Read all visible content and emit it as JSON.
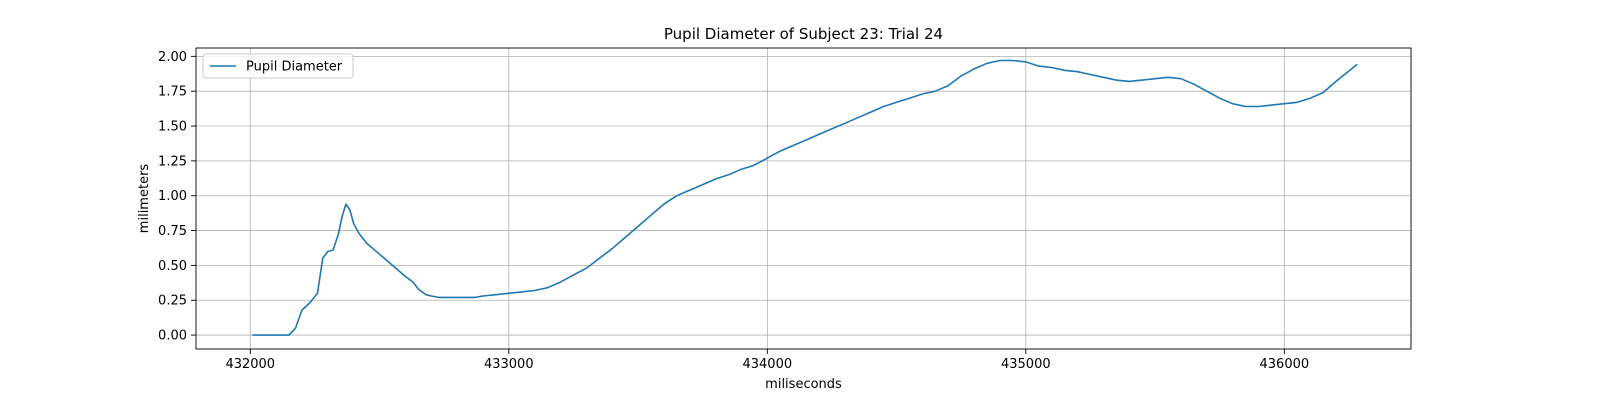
{
  "chart_data": {
    "type": "line",
    "title": "Pupil Diameter of Subject 23: Trial 24",
    "xlabel": "miliseconds",
    "ylabel": "milimeters",
    "xlim": [
      431790,
      436490
    ],
    "ylim": [
      -0.1,
      2.06
    ],
    "xticks": [
      432000,
      433000,
      434000,
      435000,
      436000
    ],
    "yticks": [
      0.0,
      0.25,
      0.5,
      0.75,
      1.0,
      1.25,
      1.5,
      1.75,
      2.0
    ],
    "ytick_labels": [
      "0.00",
      "0.25",
      "0.50",
      "0.75",
      "1.00",
      "1.25",
      "1.50",
      "1.75",
      "2.00"
    ],
    "grid": true,
    "legend_position": "top-left",
    "colors": {
      "series": "#1f77b4"
    },
    "series": [
      {
        "name": "Pupil Diameter",
        "x": [
          432010,
          432080,
          432150,
          432175,
          432200,
          432230,
          432260,
          432280,
          432300,
          432320,
          432340,
          432355,
          432370,
          432385,
          432400,
          432420,
          432450,
          432500,
          432550,
          432600,
          432630,
          432650,
          432680,
          432700,
          432730,
          432750,
          432780,
          432820,
          432850,
          432870,
          432900,
          432950,
          433000,
          433050,
          433100,
          433150,
          433200,
          433250,
          433300,
          433350,
          433400,
          433450,
          433500,
          433550,
          433600,
          433650,
          433700,
          433750,
          433800,
          433850,
          433900,
          433950,
          434000,
          434050,
          434100,
          434150,
          434200,
          434250,
          434300,
          434350,
          434400,
          434450,
          434500,
          434550,
          434600,
          434650,
          434700,
          434750,
          434800,
          434850,
          434900,
          434950,
          435000,
          435050,
          435100,
          435150,
          435200,
          435250,
          435300,
          435350,
          435400,
          435450,
          435500,
          435550,
          435600,
          435650,
          435700,
          435750,
          435800,
          435850,
          435900,
          435950,
          436000,
          436050,
          436100,
          436150,
          436200,
          436280
        ],
        "values": [
          0.0,
          0.0,
          0.0,
          0.05,
          0.18,
          0.23,
          0.3,
          0.55,
          0.6,
          0.61,
          0.72,
          0.85,
          0.94,
          0.9,
          0.8,
          0.73,
          0.66,
          0.58,
          0.5,
          0.42,
          0.38,
          0.33,
          0.29,
          0.28,
          0.27,
          0.27,
          0.27,
          0.27,
          0.27,
          0.27,
          0.28,
          0.29,
          0.3,
          0.31,
          0.32,
          0.34,
          0.38,
          0.43,
          0.48,
          0.55,
          0.62,
          0.7,
          0.78,
          0.86,
          0.94,
          1.0,
          1.04,
          1.08,
          1.12,
          1.15,
          1.19,
          1.22,
          1.27,
          1.32,
          1.36,
          1.4,
          1.44,
          1.48,
          1.52,
          1.56,
          1.6,
          1.64,
          1.67,
          1.7,
          1.73,
          1.75,
          1.79,
          1.86,
          1.91,
          1.95,
          1.97,
          1.97,
          1.96,
          1.93,
          1.92,
          1.9,
          1.89,
          1.87,
          1.85,
          1.83,
          1.82,
          1.83,
          1.84,
          1.85,
          1.84,
          1.8,
          1.75,
          1.7,
          1.66,
          1.64,
          1.64,
          1.65,
          1.66,
          1.67,
          1.7,
          1.74,
          1.82,
          1.94
        ]
      }
    ]
  }
}
